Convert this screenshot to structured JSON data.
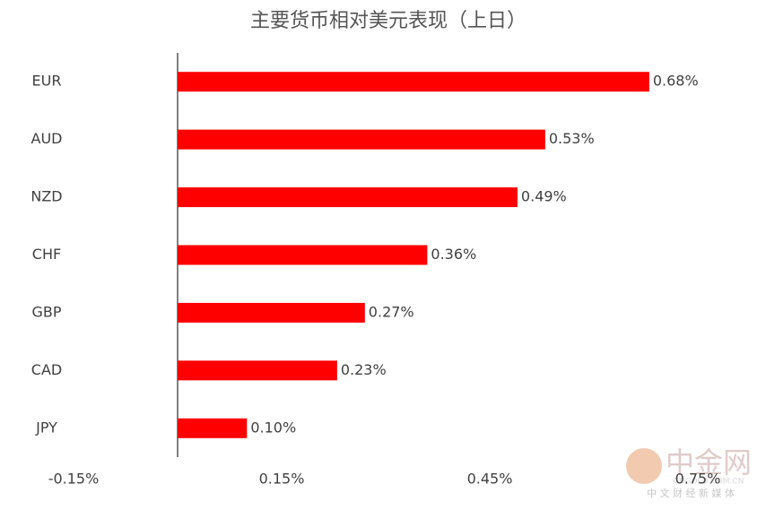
{
  "chart_data": {
    "type": "hbar",
    "title": "主要货币相对美元表现（上日）",
    "categories": [
      "EUR",
      "AUD",
      "NZD",
      "CHF",
      "GBP",
      "CAD",
      "JPY"
    ],
    "values": [
      0.68,
      0.53,
      0.49,
      0.36,
      0.27,
      0.23,
      0.1
    ],
    "value_labels": [
      "0.68%",
      "0.53%",
      "0.49%",
      "0.36%",
      "0.27%",
      "0.23%",
      "0.10%"
    ],
    "color": "#ff0000",
    "xlim": [
      -0.15,
      0.75
    ],
    "xticks": [
      {
        "value": -0.15,
        "label": "-0.15%"
      },
      {
        "value": 0.15,
        "label": "0.15%"
      },
      {
        "value": 0.45,
        "label": "0.45%"
      },
      {
        "value": 0.75,
        "label": "0.75%"
      }
    ],
    "grid": false
  },
  "watermark": {
    "name": "中金网",
    "url": "CNGOLD.COM.CN",
    "slogan": "中 文 财 经 新 媒 体"
  }
}
